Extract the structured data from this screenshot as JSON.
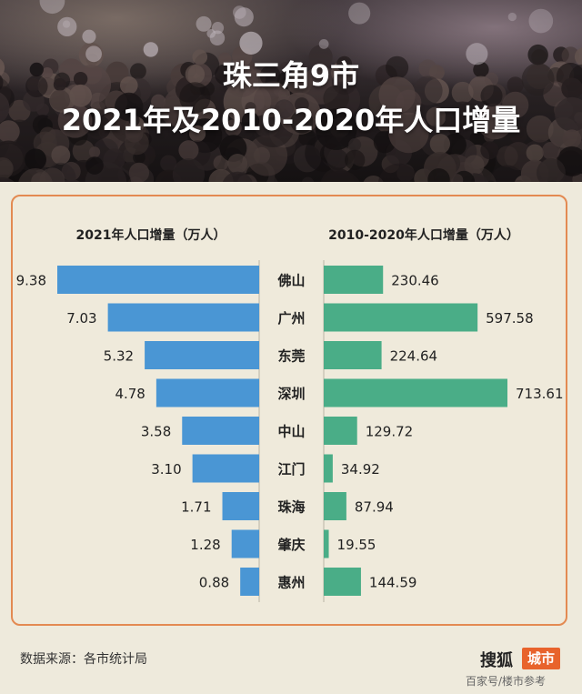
{
  "header": {
    "title_line1": "珠三角9市",
    "title_line2": "2021年及2010-2020年人口增量"
  },
  "chart_data": {
    "type": "bar",
    "categories": [
      "佛山",
      "广州",
      "东莞",
      "深圳",
      "中山",
      "江门",
      "珠海",
      "肇庆",
      "惠州"
    ],
    "series": [
      {
        "name": "2021年人口增量（万人）",
        "values": [
          9.38,
          7.03,
          5.32,
          4.78,
          3.58,
          3.1,
          1.71,
          1.28,
          0.88
        ],
        "labels": [
          "9.38",
          "7.03",
          "5.32",
          "4.78",
          "3.58",
          "3.10",
          "1.71",
          "1.28",
          "0.88"
        ],
        "color": "#4a96d4"
      },
      {
        "name": "2010-2020年人口增量（万人）",
        "values": [
          230.46,
          597.58,
          224.64,
          713.61,
          129.72,
          34.92,
          87.94,
          19.55,
          144.59
        ],
        "labels": [
          "230.46",
          "597.58",
          "224.64",
          "713.61",
          "129.72",
          "34.92",
          "87.94",
          "19.55",
          "144.59"
        ],
        "color": "#4aad87"
      }
    ]
  },
  "footer": {
    "source": "数据来源：各市统计局",
    "brand": "搜狐",
    "brand_tag": "城市",
    "watermark": "百家号/楼市参考"
  }
}
